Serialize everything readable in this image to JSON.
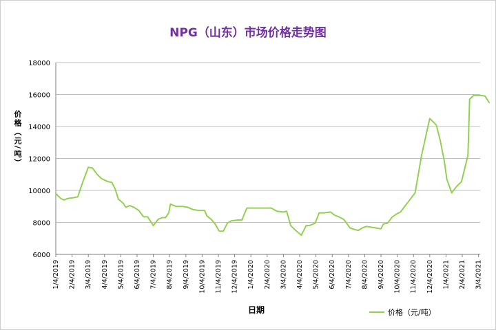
{
  "chart_data": {
    "type": "line",
    "title": "NPG（山东）市场价格走势图",
    "xlabel": "日期",
    "ylabel": "价格（元/吨）",
    "ylim": [
      6000,
      18000
    ],
    "yticks": [
      6000,
      8000,
      10000,
      12000,
      14000,
      16000,
      18000
    ],
    "ytick_labels": [
      "6000",
      "8000",
      "10000",
      "12000",
      "14000",
      "16000",
      "18000"
    ],
    "grid": true,
    "legend": "bottom-right",
    "color": "#92d050",
    "x_ticks": [
      "1/4/2019",
      "2/4/2019",
      "3/4/2019",
      "4/4/2019",
      "5/4/2019",
      "6/4/2019",
      "7/4/2019",
      "8/4/2019",
      "9/4/2019",
      "10/4/2019",
      "11/4/2019",
      "12/4/2019",
      "1/4/2020",
      "2/4/2020",
      "3/4/2020",
      "4/4/2020",
      "5/4/2020",
      "6/4/2020",
      "7/4/2020",
      "8/4/2020",
      "9/4/2020",
      "10/4/2020",
      "11/4/2020",
      "12/4/2020",
      "1/4/2021",
      "2/4/2021",
      "3/4/2021"
    ],
    "series": [
      {
        "name": "价格（元/吨）",
        "values": [
          [
            0.0,
            9800
          ],
          [
            0.3,
            9500
          ],
          [
            0.5,
            9400
          ],
          [
            0.75,
            9500
          ],
          [
            1.1,
            9550
          ],
          [
            1.35,
            9600
          ],
          [
            1.65,
            10500
          ],
          [
            2.0,
            11450
          ],
          [
            2.25,
            11400
          ],
          [
            2.55,
            11000
          ],
          [
            2.8,
            10750
          ],
          [
            3.2,
            10550
          ],
          [
            3.45,
            10500
          ],
          [
            3.65,
            10100
          ],
          [
            3.85,
            9450
          ],
          [
            4.15,
            9200
          ],
          [
            4.3,
            8950
          ],
          [
            4.55,
            9050
          ],
          [
            4.8,
            8950
          ],
          [
            5.1,
            8750
          ],
          [
            5.4,
            8350
          ],
          [
            5.65,
            8350
          ],
          [
            6.0,
            7800
          ],
          [
            6.3,
            8200
          ],
          [
            6.55,
            8300
          ],
          [
            6.75,
            8300
          ],
          [
            6.95,
            8600
          ],
          [
            7.05,
            9150
          ],
          [
            7.4,
            9000
          ],
          [
            7.8,
            9000
          ],
          [
            8.1,
            8950
          ],
          [
            8.45,
            8800
          ],
          [
            8.8,
            8750
          ],
          [
            9.15,
            8750
          ],
          [
            9.3,
            8400
          ],
          [
            9.55,
            8200
          ],
          [
            9.8,
            7900
          ],
          [
            10.05,
            7450
          ],
          [
            10.3,
            7450
          ],
          [
            10.55,
            7950
          ],
          [
            10.8,
            8100
          ],
          [
            11.2,
            8150
          ],
          [
            11.45,
            8150
          ],
          [
            11.75,
            8900
          ],
          [
            12.2,
            8900
          ],
          [
            12.7,
            8900
          ],
          [
            13.25,
            8900
          ],
          [
            13.6,
            8700
          ],
          [
            14.0,
            8650
          ],
          [
            14.2,
            8700
          ],
          [
            14.45,
            7800
          ],
          [
            14.7,
            7550
          ],
          [
            15.1,
            7200
          ],
          [
            15.4,
            7800
          ],
          [
            15.6,
            7800
          ],
          [
            15.95,
            7950
          ],
          [
            16.2,
            8600
          ],
          [
            16.5,
            8600
          ],
          [
            16.9,
            8650
          ],
          [
            17.15,
            8450
          ],
          [
            17.4,
            8350
          ],
          [
            17.7,
            8200
          ],
          [
            17.85,
            8000
          ],
          [
            18.1,
            7650
          ],
          [
            18.4,
            7550
          ],
          [
            18.6,
            7500
          ],
          [
            18.85,
            7650
          ],
          [
            19.1,
            7750
          ],
          [
            19.4,
            7700
          ],
          [
            19.7,
            7650
          ],
          [
            20.0,
            7600
          ],
          [
            20.15,
            7900
          ],
          [
            20.4,
            7950
          ],
          [
            20.7,
            8350
          ],
          [
            21.0,
            8550
          ],
          [
            21.2,
            8650
          ],
          [
            21.5,
            9050
          ],
          [
            21.8,
            9450
          ],
          [
            22.1,
            9850
          ],
          [
            22.5,
            12200
          ],
          [
            23.0,
            14500
          ],
          [
            23.4,
            14100
          ],
          [
            23.65,
            13100
          ],
          [
            23.9,
            11800
          ],
          [
            24.05,
            10700
          ],
          [
            24.35,
            9850
          ],
          [
            24.65,
            10250
          ],
          [
            24.95,
            10550
          ],
          [
            25.35,
            12200
          ],
          [
            25.45,
            15700
          ],
          [
            25.7,
            15950
          ],
          [
            26.1,
            15950
          ],
          [
            26.4,
            15900
          ],
          [
            26.65,
            15500
          ]
        ]
      }
    ]
  }
}
